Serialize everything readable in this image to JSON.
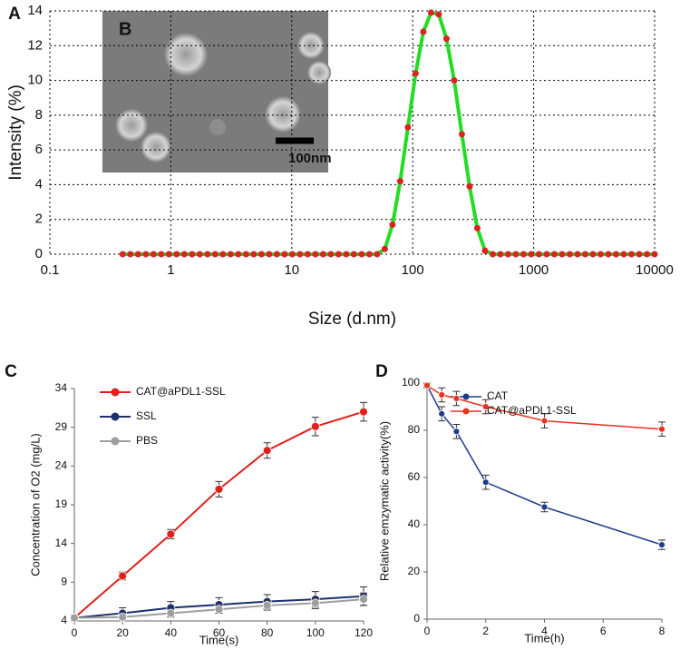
{
  "chart_data": [
    {
      "type": "line",
      "panel_label": "A",
      "xlabel": "Size (d.nm)",
      "ylabel": "Intensity (%)",
      "xlog": true,
      "grid": true,
      "xlim": [
        0.1,
        10000
      ],
      "xticks": [
        0.1,
        1,
        10,
        100,
        1000,
        10000
      ],
      "ylim": [
        0,
        14
      ],
      "yticks": [
        0,
        2,
        4,
        6,
        8,
        10,
        12,
        14
      ],
      "inset_label": "B",
      "scale_bar_label": "100nm",
      "x": [
        0.4,
        0.4632,
        0.5365,
        0.6213,
        0.7195,
        0.8332,
        0.9649,
        1.117,
        1.294,
        1.499,
        1.736,
        2.01,
        2.328,
        2.696,
        3.122,
        3.615,
        4.187,
        4.849,
        5.615,
        6.503,
        7.531,
        8.721,
        10.1,
        11.7,
        13.54,
        15.69,
        18.17,
        21.04,
        24.36,
        28.21,
        32.67,
        37.84,
        43.82,
        50.75,
        58.77,
        68.06,
        78.82,
        91.28,
        105.7,
        122.4,
        141.8,
        164.2,
        190.1,
        220.2,
        255.0,
        295.3,
        342.0,
        396.1,
        458.7,
        531.2,
        615.1,
        712.4,
        825.0,
        955.4,
        1106,
        1281,
        1484,
        1718,
        1990,
        2305,
        2669,
        3091,
        3580,
        4145,
        4801,
        5560,
        6439,
        7456,
        8635,
        10000
      ],
      "series": [
        {
          "color": "#22dd22",
          "marker_color": "#dd2222",
          "values": [
            0,
            0,
            0,
            0,
            0,
            0,
            0,
            0,
            0,
            0,
            0,
            0,
            0,
            0,
            0,
            0,
            0,
            0,
            0,
            0,
            0,
            0,
            0,
            0,
            0,
            0,
            0,
            0,
            0,
            0,
            0,
            0,
            0,
            0,
            0.3,
            1.7,
            4.2,
            7.3,
            10.4,
            12.8,
            13.9,
            13.8,
            12.4,
            10,
            6.9,
            3.9,
            1.5,
            0.2,
            0,
            0,
            0,
            0,
            0,
            0,
            0,
            0,
            0,
            0,
            0,
            0,
            0,
            0,
            0,
            0,
            0,
            0,
            0,
            0,
            0,
            0
          ]
        }
      ]
    },
    {
      "type": "line",
      "panel_label": "C",
      "xlabel": "Time(s)",
      "ylabel": "Concentration of O2 (mg/L)",
      "grid": false,
      "legend": "upper left",
      "xlim": [
        0,
        120
      ],
      "xticks": [
        0,
        20,
        40,
        60,
        80,
        100,
        120
      ],
      "ylim": [
        4,
        34
      ],
      "yticks": [
        4,
        9,
        14,
        19,
        24,
        29,
        34
      ],
      "x": [
        0,
        20,
        40,
        60,
        80,
        100,
        120
      ],
      "series": [
        {
          "name": "CAT@aPDL1-SSL",
          "color": "#e0201b",
          "values": [
            4.4,
            9.8,
            15.2,
            21,
            26,
            29.1,
            31
          ],
          "errors": [
            0.4,
            0.5,
            0.6,
            1,
            1,
            1.2,
            1.2
          ]
        },
        {
          "name": "SSL",
          "color": "#1c2f6e",
          "values": [
            4.4,
            5,
            5.7,
            6.1,
            6.5,
            6.8,
            7.2
          ],
          "errors": [
            0.3,
            0.7,
            0.8,
            0.9,
            0.9,
            1,
            1.2
          ]
        },
        {
          "name": "PBS",
          "color": "#9e9e9e",
          "values": [
            4.4,
            4.5,
            5,
            5.5,
            6,
            6.3,
            6.8
          ],
          "errors": [
            0.2,
            0.3,
            0.5,
            0.5,
            0.6,
            0.7,
            0.8
          ]
        }
      ]
    },
    {
      "type": "line",
      "panel_label": "D",
      "xlabel": "Time(h)",
      "ylabel": "Relative emzymatic activity(%)",
      "grid": false,
      "legend": "upper center",
      "xlim": [
        0,
        8
      ],
      "xticks": [
        0,
        2,
        4,
        6,
        8
      ],
      "ylim": [
        0,
        100
      ],
      "yticks": [
        0,
        20,
        40,
        60,
        80,
        100
      ],
      "x": [
        0,
        0.5,
        1,
        2,
        4,
        8
      ],
      "series": [
        {
          "name": "CAT",
          "color": "#1f3c88",
          "values": [
            99,
            87,
            79.5,
            58,
            47.5,
            31.5
          ],
          "errors": [
            1,
            3,
            3,
            3,
            2,
            2
          ]
        },
        {
          "name": "CAT@aPDL1-SSL",
          "color": "#e8321e",
          "values": [
            99,
            95,
            93.5,
            90,
            84,
            80.5
          ],
          "errors": [
            1,
            3,
            3,
            3,
            3,
            3
          ]
        }
      ]
    }
  ]
}
